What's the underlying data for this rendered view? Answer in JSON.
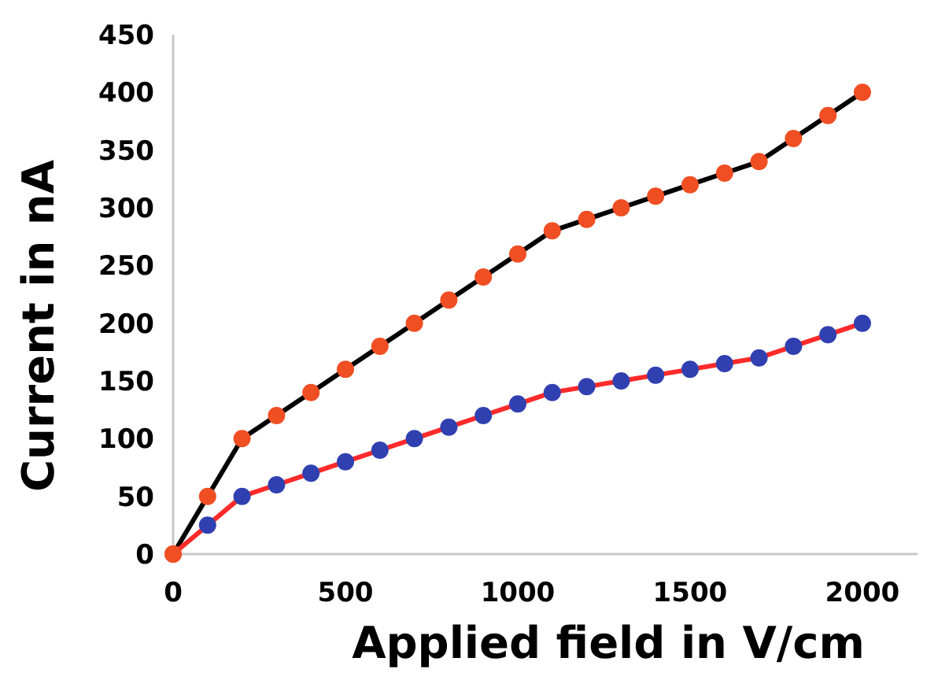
{
  "chart_data": {
    "type": "line",
    "xlabel": "Applied field in V/cm",
    "ylabel": "Current in nA",
    "x": [
      0,
      100,
      200,
      300,
      400,
      500,
      600,
      700,
      800,
      900,
      1000,
      1100,
      1200,
      1300,
      1400,
      1500,
      1600,
      1700,
      1800,
      1900,
      2000
    ],
    "series": [
      {
        "color": "#000000",
        "colors": [
          "#f04e23",
          "#f04e23",
          "#f04e23",
          "#f04e23",
          "#f04e23",
          "#f04e23",
          "#f04e23",
          "#f04e23",
          "#f04e23",
          "#f04e23",
          "#f04e23",
          "#f04e23",
          "#f04e23",
          "#f04e23",
          "#f04e23",
          "#f04e23",
          "#f04e23",
          "#f04e23",
          "#f04e23",
          "#f04e23",
          "#f04e23"
        ],
        "values": [
          0,
          50,
          100,
          120,
          140,
          160,
          180,
          200,
          220,
          240,
          260,
          280,
          290,
          300,
          310,
          320,
          330,
          340,
          360,
          380,
          400
        ]
      },
      {
        "color": "#ff2a2a",
        "colors": [
          "#f04e23",
          "#3040b0",
          "#3040b0",
          "#3040b0",
          "#3040b0",
          "#3040b0",
          "#3040b0",
          "#3040b0",
          "#3040b0",
          "#3040b0",
          "#3040b0",
          "#3040b0",
          "#3040b0",
          "#3040b0",
          "#3040b0",
          "#3040b0",
          "#3040b0",
          "#3040b0",
          "#3040b0",
          "#3040b0",
          "#3040b0"
        ],
        "values": [
          0,
          25,
          50,
          60,
          70,
          80,
          90,
          100,
          110,
          120,
          130,
          140,
          145,
          150,
          155,
          160,
          165,
          170,
          180,
          190,
          200
        ]
      }
    ],
    "xlim": [
      0,
      2160
    ],
    "xticks": [
      0,
      500,
      1000,
      1500,
      2000
    ],
    "ylim": [
      0,
      450
    ],
    "yticks": [
      0,
      50,
      100,
      150,
      200,
      250,
      300,
      350,
      400,
      450
    ],
    "grid": false,
    "marker": "circle",
    "line_style": "solid"
  }
}
